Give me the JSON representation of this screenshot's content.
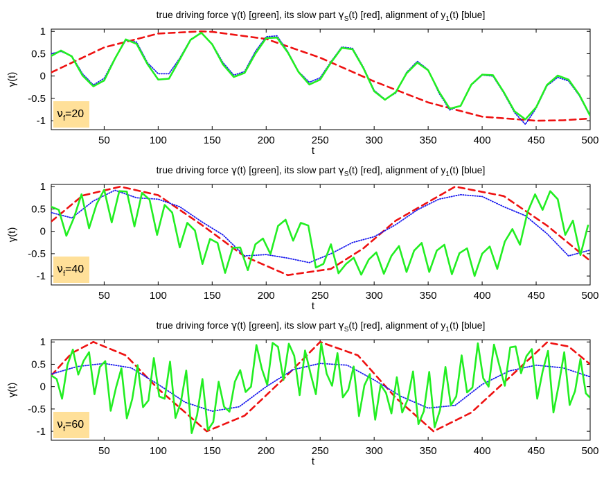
{
  "figure": {
    "colors": {
      "true_force": "#22ee22",
      "slow_part": "#ee1111",
      "alignment": "#1a1aee",
      "label_box": "#ffe099"
    }
  },
  "chart_data": [
    {
      "type": "line",
      "panel": "nu_f = 20",
      "title_parts": [
        "true driving force ",
        "γ",
        "(t) [green], its slow part ",
        "γ",
        "S",
        "(t) [red], alignment of y",
        "1",
        "(t) [blue]"
      ],
      "xlabel": "t",
      "ylabel": "γ(t)",
      "xlim": [
        1,
        500
      ],
      "ylim": [
        -1.2,
        1.05
      ],
      "xticks": [
        50,
        100,
        150,
        200,
        250,
        300,
        350,
        400,
        450,
        500
      ],
      "yticks": [
        -1,
        -0.5,
        0,
        0.5,
        1
      ],
      "ytick_labels": [
        "-1",
        "-0.5",
        "0",
        "0.5",
        "1"
      ],
      "annotation": {
        "symbol": "ν",
        "sub": "f",
        "text": "=20"
      },
      "series": [
        {
          "name": "true driving force γ(t) [green]",
          "style": "solid",
          "x": [
            1,
            10,
            20,
            30,
            40,
            50,
            60,
            70,
            80,
            90,
            100,
            110,
            120,
            130,
            140,
            150,
            160,
            170,
            180,
            190,
            200,
            210,
            220,
            230,
            240,
            250,
            260,
            270,
            280,
            290,
            300,
            310,
            320,
            330,
            340,
            350,
            360,
            370,
            380,
            390,
            400,
            410,
            420,
            430,
            440,
            450,
            460,
            470,
            480,
            490,
            500
          ],
          "y": [
            0.45,
            0.57,
            0.44,
            0.01,
            -0.23,
            -0.1,
            0.39,
            0.82,
            0.72,
            0.27,
            -0.08,
            -0.06,
            0.37,
            0.81,
            0.97,
            0.71,
            0.26,
            -0.02,
            0.07,
            0.5,
            0.85,
            0.86,
            0.53,
            0.09,
            -0.19,
            -0.08,
            0.3,
            0.63,
            0.6,
            0.18,
            -0.34,
            -0.53,
            -0.36,
            0.06,
            0.3,
            0.13,
            -0.35,
            -0.73,
            -0.67,
            -0.19,
            0.03,
            0.02,
            -0.36,
            -0.79,
            -0.97,
            -0.7,
            -0.2,
            0.01,
            -0.08,
            -0.42,
            -0.89
          ]
        },
        {
          "name": "slow part γS(t) [red]",
          "style": "dashed",
          "x": [
            1,
            50,
            100,
            140,
            150,
            200,
            250,
            300,
            350,
            400,
            450,
            475,
            500
          ],
          "y": [
            0.08,
            0.64,
            0.95,
            1.0,
            0.99,
            0.83,
            0.41,
            -0.12,
            -0.59,
            -0.91,
            -1.0,
            -0.99,
            -0.95
          ]
        },
        {
          "name": "alignment of y1(t) [blue]",
          "style": "dotted",
          "x": [
            1,
            10,
            20,
            30,
            40,
            50,
            60,
            70,
            80,
            90,
            100,
            110,
            120,
            130,
            140,
            150,
            160,
            170,
            180,
            190,
            200,
            210,
            220,
            230,
            240,
            250,
            260,
            270,
            280,
            290,
            300,
            310,
            320,
            330,
            340,
            350,
            360,
            370,
            380,
            390,
            400,
            410,
            420,
            430,
            440,
            450,
            460,
            470,
            480,
            490,
            500
          ],
          "y": [
            0.5,
            0.55,
            0.45,
            0.05,
            -0.2,
            -0.05,
            0.4,
            0.8,
            0.76,
            0.3,
            0.05,
            0.05,
            0.4,
            0.82,
            0.96,
            0.72,
            0.3,
            0.02,
            0.1,
            0.55,
            0.88,
            0.9,
            0.55,
            0.1,
            -0.14,
            -0.04,
            0.32,
            0.65,
            0.62,
            0.2,
            -0.32,
            -0.52,
            -0.38,
            0.08,
            0.33,
            0.14,
            -0.38,
            -0.76,
            -0.66,
            -0.2,
            0.02,
            0.0,
            -0.38,
            -0.82,
            -1.08,
            -0.72,
            -0.22,
            -0.03,
            -0.11,
            -0.44,
            -0.9
          ]
        }
      ]
    },
    {
      "type": "line",
      "panel": "nu_f = 40",
      "title_parts": [
        "true driving force ",
        "γ",
        "(t) [green], its slow part ",
        "γ",
        "S",
        "(t) [red], alignment of y",
        "1",
        "(t) [blue]"
      ],
      "xlabel": "t",
      "ylabel": "γ(t)",
      "xlim": [
        1,
        500
      ],
      "ylim": [
        -1.2,
        1.05
      ],
      "xticks": [
        50,
        100,
        150,
        200,
        250,
        300,
        350,
        400,
        450,
        500
      ],
      "yticks": [
        -1,
        -0.5,
        0,
        0.5,
        1
      ],
      "ytick_labels": [
        "-1",
        "-0.5",
        "0",
        "0.5",
        "1"
      ],
      "annotation": {
        "symbol": "ν",
        "sub": "f",
        "text": "=40"
      },
      "series": [
        {
          "name": "true driving force γ(t) [green]",
          "style": "solid",
          "x": [
            1,
            8,
            15,
            22,
            29,
            36,
            43,
            50,
            57,
            64,
            71,
            78,
            85,
            92,
            99,
            106,
            113,
            120,
            127,
            134,
            141,
            148,
            155,
            162,
            169,
            176,
            183,
            190,
            197,
            204,
            211,
            218,
            225,
            232,
            239,
            246,
            253,
            260,
            267,
            274,
            281,
            288,
            295,
            302,
            309,
            316,
            323,
            330,
            337,
            344,
            351,
            358,
            365,
            372,
            379,
            386,
            393,
            400,
            407,
            414,
            421,
            428,
            435,
            442,
            449,
            456,
            463,
            470,
            477,
            484,
            491,
            498
          ],
          "y": [
            0.55,
            0.48,
            -0.1,
            0.3,
            0.83,
            0.07,
            0.61,
            0.93,
            0.2,
            0.9,
            0.89,
            0.11,
            0.86,
            0.71,
            -0.08,
            0.59,
            0.42,
            -0.36,
            0.19,
            0.02,
            -0.73,
            -0.17,
            -0.26,
            -0.93,
            -0.37,
            -0.36,
            -0.87,
            -0.29,
            -0.16,
            -0.51,
            0.12,
            0.26,
            -0.21,
            0.19,
            0.13,
            -0.81,
            -0.73,
            -0.29,
            -0.94,
            -0.73,
            -0.59,
            -0.97,
            -0.63,
            -0.47,
            -0.95,
            -0.55,
            -0.33,
            -0.91,
            -0.43,
            -0.26,
            -0.91,
            -0.43,
            -0.3,
            -0.96,
            -0.49,
            -0.38,
            -1.0,
            -0.5,
            -0.34,
            -0.84,
            -0.23,
            0.05,
            -0.3,
            0.43,
            0.83,
            0.48,
            0.9,
            0.72,
            -0.08,
            0.24,
            -0.53,
            0.13
          ]
        },
        {
          "name": "slow part γS(t) [red]",
          "style": "dashed",
          "x": [
            1,
            30,
            65,
            100,
            140,
            180,
            220,
            260,
            290,
            320,
            375,
            420,
            460,
            500
          ],
          "y": [
            0.22,
            0.8,
            1.0,
            0.81,
            0.15,
            -0.56,
            -0.98,
            -0.84,
            -0.38,
            0.24,
            1.0,
            0.79,
            0.13,
            -0.66
          ]
        },
        {
          "name": "alignment of y1(t) [blue]",
          "style": "dotted",
          "x": [
            1,
            20,
            40,
            60,
            80,
            100,
            120,
            140,
            160,
            180,
            200,
            220,
            240,
            260,
            280,
            300,
            320,
            340,
            360,
            380,
            400,
            420,
            440,
            460,
            480,
            500
          ],
          "y": [
            0.42,
            0.3,
            0.68,
            0.92,
            0.75,
            0.72,
            0.55,
            0.22,
            -0.08,
            -0.55,
            -0.52,
            -0.6,
            -0.7,
            -0.5,
            -0.25,
            -0.12,
            0.15,
            0.48,
            0.72,
            0.82,
            0.78,
            0.55,
            0.35,
            -0.05,
            -0.55,
            -0.42
          ]
        }
      ]
    },
    {
      "type": "line",
      "panel": "nu_f = 60",
      "title_parts": [
        "true driving force ",
        "γ",
        "(t) [green], its slow part ",
        "γ",
        "S",
        "(t) [red], alignment of y",
        "1",
        "(t) [blue]"
      ],
      "xlabel": "t",
      "ylabel": "γ(t)",
      "xlim": [
        1,
        500
      ],
      "ylim": [
        -1.2,
        1.05
      ],
      "xticks": [
        50,
        100,
        150,
        200,
        250,
        300,
        350,
        400,
        450,
        500
      ],
      "yticks": [
        -1,
        -0.5,
        0,
        0.5,
        1
      ],
      "ytick_labels": [
        "-1",
        "-0.5",
        "0",
        "0.5",
        "1"
      ],
      "annotation": {
        "symbol": "ν",
        "sub": "f",
        "text": "=60"
      },
      "series": [
        {
          "name": "true driving force γ(t) [green]",
          "style": "solid",
          "x": [
            1,
            6,
            11,
            16,
            21,
            26,
            31,
            36,
            41,
            46,
            51,
            56,
            61,
            66,
            71,
            76,
            81,
            86,
            91,
            96,
            101,
            106,
            111,
            116,
            121,
            126,
            131,
            136,
            141,
            146,
            151,
            156,
            161,
            166,
            171,
            176,
            181,
            186,
            191,
            196,
            201,
            206,
            211,
            216,
            221,
            226,
            231,
            236,
            241,
            246,
            251,
            256,
            261,
            266,
            271,
            276,
            281,
            286,
            291,
            296,
            301,
            306,
            311,
            316,
            321,
            326,
            331,
            336,
            341,
            346,
            351,
            356,
            361,
            366,
            371,
            376,
            381,
            386,
            391,
            396,
            401,
            406,
            411,
            416,
            421,
            426,
            431,
            436,
            441,
            446,
            451,
            456,
            461,
            466,
            471,
            476,
            481,
            486,
            491,
            496,
            500
          ],
          "y": [
            0.25,
            0.17,
            -0.27,
            0.49,
            0.83,
            0.27,
            0.58,
            0.77,
            -0.17,
            0.44,
            0.57,
            -0.54,
            -0.02,
            0.41,
            -0.71,
            -0.28,
            0.48,
            -0.46,
            -0.31,
            0.64,
            -0.22,
            -0.27,
            0.56,
            -0.7,
            -0.35,
            0.36,
            -1.04,
            -0.64,
            0.17,
            -0.97,
            -0.79,
            0.11,
            -0.45,
            -0.56,
            0.11,
            0.37,
            -0.12,
            0.0,
            0.93,
            0.4,
            0.04,
            0.98,
            0.89,
            0.15,
            0.96,
            0.69,
            -0.19,
            0.81,
            0.3,
            -0.17,
            0.97,
            0.29,
            0.02,
            0.75,
            -0.24,
            -0.07,
            0.45,
            -0.66,
            0.03,
            0.28,
            -0.74,
            0.04,
            -0.14,
            -0.6,
            0.21,
            -0.58,
            -0.29,
            0.34,
            -0.84,
            -0.55,
            0.33,
            -0.91,
            -0.52,
            0.44,
            -0.42,
            -0.22,
            0.7,
            -0.13,
            -0.02,
            0.97,
            0.19,
            0.0,
            0.94,
            0.47,
            0.02,
            0.88,
            0.9,
            0.3,
            0.68,
            0.84,
            -0.27,
            0.34,
            0.8,
            -0.58,
            0.05,
            0.77,
            -0.41,
            -0.1,
            0.62,
            -0.15,
            -0.25
          ]
        },
        {
          "name": "slow part γS(t) [red]",
          "style": "dashed",
          "x": [
            1,
            20,
            40,
            70,
            100,
            145,
            180,
            215,
            250,
            285,
            320,
            355,
            390,
            425,
            460,
            480,
            500
          ],
          "y": [
            0.25,
            0.75,
            1.0,
            0.7,
            -0.05,
            -1.0,
            -0.65,
            0.15,
            1.0,
            0.7,
            -0.25,
            -1.0,
            -0.58,
            0.2,
            0.99,
            0.9,
            0.5
          ]
        },
        {
          "name": "alignment of y1(t) [blue]",
          "style": "dotted",
          "x": [
            1,
            25,
            50,
            75,
            100,
            125,
            150,
            175,
            200,
            225,
            250,
            275,
            300,
            325,
            350,
            375,
            400,
            425,
            450,
            475,
            500
          ],
          "y": [
            0.28,
            0.45,
            0.52,
            0.42,
            0.05,
            -0.35,
            -0.55,
            -0.45,
            0.0,
            0.38,
            0.52,
            0.48,
            0.15,
            -0.22,
            -0.48,
            -0.42,
            0.05,
            0.35,
            0.48,
            0.42,
            0.22
          ]
        }
      ]
    }
  ]
}
